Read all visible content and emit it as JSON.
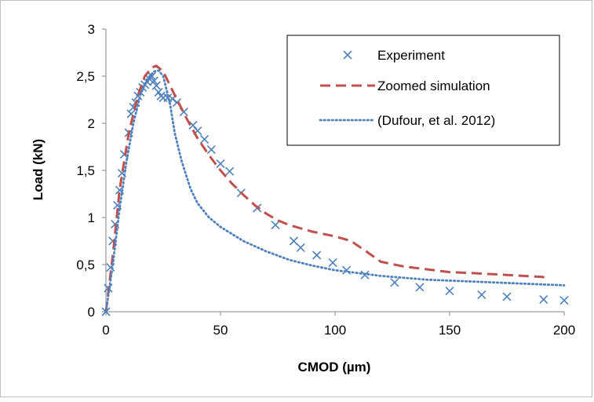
{
  "chart_data": {
    "type": "line",
    "xlabel": "CMOD (µm)",
    "ylabel": "Load (kN)",
    "xlim": [
      0,
      200
    ],
    "ylim": [
      0,
      3
    ],
    "x_ticks": [
      "0",
      "50",
      "100",
      "150",
      "200"
    ],
    "y_ticks": [
      "0",
      "0,5",
      "1",
      "1,5",
      "2",
      "2,5",
      "3"
    ],
    "grid": false,
    "legend_position": "top-right",
    "series": [
      {
        "name": "Experiment",
        "marker": "x",
        "color": "#4f81bd",
        "points": [
          [
            0,
            0
          ],
          [
            1,
            0.25
          ],
          [
            2,
            0.47
          ],
          [
            3,
            0.75
          ],
          [
            4,
            0.93
          ],
          [
            5,
            1.13
          ],
          [
            6,
            1.29
          ],
          [
            7,
            1.47
          ],
          [
            8,
            1.67
          ],
          [
            10,
            1.9
          ],
          [
            11,
            2.1
          ],
          [
            12,
            2.17
          ],
          [
            13,
            2.22
          ],
          [
            14,
            2.29
          ],
          [
            15,
            2.33
          ],
          [
            16,
            2.38
          ],
          [
            17,
            2.41
          ],
          [
            18,
            2.44
          ],
          [
            19,
            2.47
          ],
          [
            20,
            2.5
          ],
          [
            21,
            2.45
          ],
          [
            22,
            2.4
          ],
          [
            23,
            2.33
          ],
          [
            24,
            2.29
          ],
          [
            25,
            2.27
          ],
          [
            27,
            2.27
          ],
          [
            29,
            2.26
          ],
          [
            31,
            2.22
          ],
          [
            34,
            2.12
          ],
          [
            38,
            1.98
          ],
          [
            40,
            1.92
          ],
          [
            43,
            1.83
          ],
          [
            46,
            1.72
          ],
          [
            50,
            1.57
          ],
          [
            54,
            1.49
          ],
          [
            59,
            1.26
          ],
          [
            66,
            1.1
          ],
          [
            74,
            0.92
          ],
          [
            82,
            0.75
          ],
          [
            85,
            0.68
          ],
          [
            92,
            0.6
          ],
          [
            99,
            0.52
          ],
          [
            105,
            0.44
          ],
          [
            113,
            0.39
          ],
          [
            126,
            0.31
          ],
          [
            137,
            0.26
          ],
          [
            150,
            0.22
          ],
          [
            164,
            0.18
          ],
          [
            175,
            0.16
          ],
          [
            191,
            0.13
          ],
          [
            200,
            0.12
          ]
        ]
      },
      {
        "name": "Zoomed simulation",
        "style": "dashed",
        "color": "#c0504d",
        "points": [
          [
            0,
            0
          ],
          [
            3,
            0.6
          ],
          [
            6,
            1.3
          ],
          [
            10,
            1.9
          ],
          [
            14,
            2.3
          ],
          [
            17,
            2.5
          ],
          [
            20,
            2.59
          ],
          [
            22,
            2.61
          ],
          [
            25,
            2.55
          ],
          [
            30,
            2.3
          ],
          [
            35,
            2.06
          ],
          [
            40,
            1.84
          ],
          [
            45,
            1.66
          ],
          [
            50,
            1.5
          ],
          [
            55,
            1.36
          ],
          [
            60,
            1.24
          ],
          [
            65,
            1.13
          ],
          [
            70,
            1.04
          ],
          [
            75,
            0.97
          ],
          [
            80,
            0.92
          ],
          [
            90,
            0.85
          ],
          [
            100,
            0.8
          ],
          [
            107,
            0.75
          ],
          [
            113,
            0.65
          ],
          [
            120,
            0.53
          ],
          [
            130,
            0.48
          ],
          [
            140,
            0.45
          ],
          [
            150,
            0.42
          ],
          [
            160,
            0.41
          ],
          [
            175,
            0.39
          ],
          [
            190,
            0.37
          ],
          [
            193,
            0.36
          ]
        ]
      },
      {
        "name": "(Dufour, et al. 2012)",
        "style": "dotted",
        "color": "#4f81bd",
        "points": [
          [
            0,
            0
          ],
          [
            3,
            0.5
          ],
          [
            6,
            1.1
          ],
          [
            9,
            1.6
          ],
          [
            12,
            2.0
          ],
          [
            15,
            2.3
          ],
          [
            18,
            2.47
          ],
          [
            21,
            2.55
          ],
          [
            23,
            2.56
          ],
          [
            25,
            2.5
          ],
          [
            28,
            2.2
          ],
          [
            30,
            1.9
          ],
          [
            33,
            1.6
          ],
          [
            37,
            1.3
          ],
          [
            40,
            1.15
          ],
          [
            45,
            1.0
          ],
          [
            50,
            0.9
          ],
          [
            60,
            0.75
          ],
          [
            70,
            0.64
          ],
          [
            80,
            0.55
          ],
          [
            90,
            0.49
          ],
          [
            100,
            0.44
          ],
          [
            120,
            0.38
          ],
          [
            140,
            0.34
          ],
          [
            160,
            0.32
          ],
          [
            180,
            0.3
          ],
          [
            200,
            0.28
          ]
        ]
      }
    ]
  }
}
